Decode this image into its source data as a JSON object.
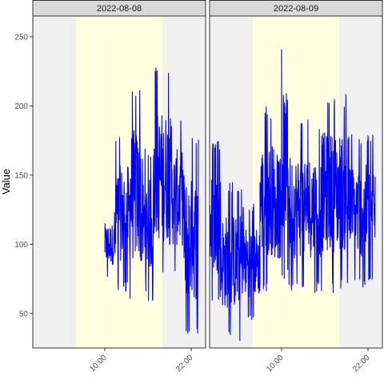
{
  "chart_data": {
    "type": "line",
    "ylabel": "Value",
    "xlabel": "",
    "ylim": [
      25,
      265
    ],
    "y_ticks": [
      50,
      100,
      150,
      200,
      250
    ],
    "x_ticks_hours": [
      10,
      22
    ],
    "x_tick_labels": [
      "10:00",
      "22:00"
    ],
    "series_color": "#0000ff",
    "night_shade_color": "#f0f0f0",
    "day_shade_color": "#ffffe0",
    "panels": [
      {
        "title": "2022-08-08",
        "x_range_hours": [
          0,
          24
        ],
        "day_shading_hours": [
          6,
          18
        ],
        "segments": [
          {
            "start_hour": 10.0,
            "end_hour": 11.5,
            "low": 75,
            "high": 125
          },
          {
            "start_hour": 11.5,
            "end_hour": 13.5,
            "low": 65,
            "high": 180
          },
          {
            "start_hour": 13.5,
            "end_hour": 15.0,
            "low": 55,
            "high": 215
          },
          {
            "start_hour": 15.0,
            "end_hour": 17.0,
            "low": 58,
            "high": 170
          },
          {
            "start_hour": 17.0,
            "end_hour": 19.0,
            "low": 70,
            "high": 228
          },
          {
            "start_hour": 19.0,
            "end_hour": 21.0,
            "low": 75,
            "high": 192
          },
          {
            "start_hour": 21.0,
            "end_hour": 23.0,
            "low": 30,
            "high": 178
          }
        ]
      },
      {
        "title": "2022-08-09",
        "x_range_hours": [
          0,
          24
        ],
        "day_shading_hours": [
          6,
          18
        ],
        "segments": [
          {
            "start_hour": 0.0,
            "end_hour": 1.5,
            "low": 55,
            "high": 175
          },
          {
            "start_hour": 1.5,
            "end_hour": 4.5,
            "low": 30,
            "high": 145
          },
          {
            "start_hour": 4.5,
            "end_hour": 7.0,
            "low": 45,
            "high": 130
          },
          {
            "start_hour": 7.0,
            "end_hour": 9.0,
            "low": 65,
            "high": 200
          },
          {
            "start_hour": 9.0,
            "end_hour": 10.0,
            "low": 70,
            "high": 165
          },
          {
            "start_hour": 10.0,
            "end_hour": 11.0,
            "low": 75,
            "high": 243
          },
          {
            "start_hour": 11.0,
            "end_hour": 15.5,
            "low": 65,
            "high": 190
          },
          {
            "start_hour": 15.5,
            "end_hour": 19.0,
            "low": 65,
            "high": 210
          },
          {
            "start_hour": 19.0,
            "end_hour": 23.0,
            "low": 68,
            "high": 180
          }
        ]
      }
    ]
  }
}
